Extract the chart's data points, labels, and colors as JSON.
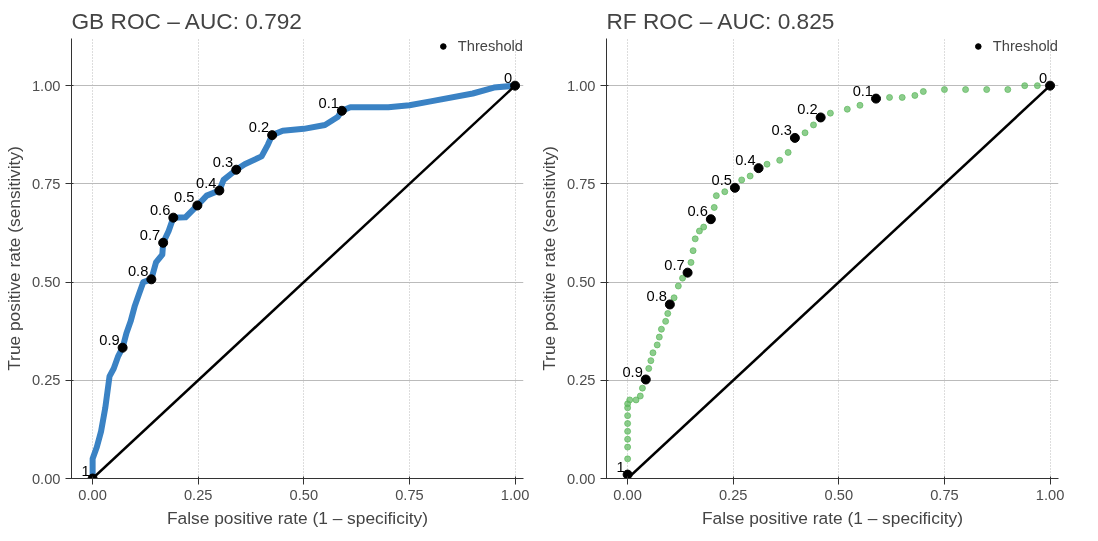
{
  "chart_data": [
    {
      "type": "line",
      "title": "GB ROC – AUC: 0.792",
      "xlabel": "False positive rate (1 – specificity)",
      "ylabel": "True positive rate (sensitivity)",
      "xlim": [
        -0.05,
        1.02
      ],
      "ylim": [
        0,
        1.12
      ],
      "xticks": [
        {
          "value": 0,
          "label": "0.00"
        },
        {
          "value": 0.25,
          "label": "0.25"
        },
        {
          "value": 0.5,
          "label": "0.50"
        },
        {
          "value": 0.75,
          "label": "0.75"
        },
        {
          "value": 1,
          "label": "1.00"
        }
      ],
      "yticks": [
        {
          "value": 0,
          "label": "0.00"
        },
        {
          "value": 0.25,
          "label": "0.25"
        },
        {
          "value": 0.5,
          "label": "0.50"
        },
        {
          "value": 0.75,
          "label": "0.75"
        },
        {
          "value": 1,
          "label": "1.00"
        }
      ],
      "grid": true,
      "legend": "top right",
      "series": [
        {
          "color": "#3a82c4",
          "x": [
            0,
            0,
            0.01,
            0.02,
            0.03,
            0.04,
            0.05,
            0.06,
            0.071,
            0.08,
            0.09,
            0.1,
            0.11,
            0.12,
            0.139,
            0.15,
            0.165,
            0.167,
            0.18,
            0.191,
            0.22,
            0.248,
            0.27,
            0.3,
            0.31,
            0.34,
            0.36,
            0.4,
            0.415,
            0.425,
            0.45,
            0.5,
            0.55,
            0.58,
            0.59,
            0.61,
            0.7,
            0.75,
            0.8,
            0.9,
            0.95,
            1
          ],
          "values": [
            0,
            0.05,
            0.08,
            0.12,
            0.18,
            0.26,
            0.28,
            0.31,
            0.333,
            0.37,
            0.4,
            0.44,
            0.47,
            0.5,
            0.507,
            0.55,
            0.57,
            0.6,
            0.63,
            0.664,
            0.665,
            0.695,
            0.72,
            0.733,
            0.76,
            0.786,
            0.8,
            0.82,
            0.85,
            0.874,
            0.885,
            0.89,
            0.9,
            0.92,
            0.936,
            0.945,
            0.945,
            0.95,
            0.96,
            0.98,
            0.995,
            1
          ]
        },
        {
          "type": "line",
          "color": "#000000",
          "x": [
            0,
            1
          ],
          "values": [
            0,
            1
          ]
        },
        {
          "type": "scatter",
          "name": "Threshold",
          "color": "#000000",
          "marker": "circle",
          "x": [
            0,
            0.071,
            0.139,
            0.167,
            0.191,
            0.248,
            0.3,
            0.34,
            0.425,
            0.59,
            1
          ],
          "values": [
            0,
            0.333,
            0.507,
            0.6,
            0.664,
            0.695,
            0.733,
            0.786,
            0.874,
            0.936,
            1
          ]
        }
      ],
      "annotations": [
        {
          "text": "1",
          "x": 0,
          "y": 0
        },
        {
          "text": "0.9",
          "x": 0.071,
          "y": 0.333
        },
        {
          "text": "0.8",
          "x": 0.139,
          "y": 0.507
        },
        {
          "text": "0.7",
          "x": 0.167,
          "y": 0.6
        },
        {
          "text": "0.6",
          "x": 0.191,
          "y": 0.664
        },
        {
          "text": "0.5",
          "x": 0.248,
          "y": 0.695
        },
        {
          "text": "0.4",
          "x": 0.3,
          "y": 0.733
        },
        {
          "text": "0.3",
          "x": 0.34,
          "y": 0.786
        },
        {
          "text": "0.2",
          "x": 0.425,
          "y": 0.874
        },
        {
          "text": "0.1",
          "x": 0.59,
          "y": 0.936
        },
        {
          "text": "0",
          "x": 1,
          "y": 1
        }
      ]
    },
    {
      "type": "scatter",
      "title": "RF ROC – AUC: 0.825",
      "xlabel": "False positive rate (1 – specificity)",
      "ylabel": "True positive rate (sensitivity)",
      "xlim": [
        -0.05,
        1.02
      ],
      "ylim": [
        0,
        1.12
      ],
      "xticks": [
        {
          "value": 0,
          "label": "0.00"
        },
        {
          "value": 0.25,
          "label": "0.25"
        },
        {
          "value": 0.5,
          "label": "0.50"
        },
        {
          "value": 0.75,
          "label": "0.75"
        },
        {
          "value": 1,
          "label": "1.00"
        }
      ],
      "yticks": [
        {
          "value": 0,
          "label": "0.00"
        },
        {
          "value": 0.25,
          "label": "0.25"
        },
        {
          "value": 0.5,
          "label": "0.50"
        },
        {
          "value": 0.75,
          "label": "0.75"
        },
        {
          "value": 1,
          "label": "1.00"
        }
      ],
      "grid": true,
      "legend": "top right",
      "series": [
        {
          "color": "#5cb85c",
          "marker": "circle",
          "x": [
            0,
            0,
            0,
            0,
            0,
            0,
            0,
            0,
            0.005,
            0.02,
            0.03,
            0.035,
            0.05,
            0.055,
            0.06,
            0.07,
            0.075,
            0.08,
            0.09,
            0.095,
            0.11,
            0.12,
            0.13,
            0.15,
            0.155,
            0.16,
            0.17,
            0.18,
            0.205,
            0.21,
            0.23,
            0.27,
            0.29,
            0.33,
            0.36,
            0.38,
            0.42,
            0.44,
            0.48,
            0.52,
            0.55,
            0.62,
            0.65,
            0.68,
            0.7,
            0.75,
            0.8,
            0.85,
            0.9,
            0.94,
            0.97
          ],
          "values": [
            0.05,
            0.08,
            0.1,
            0.12,
            0.14,
            0.16,
            0.18,
            0.19,
            0.2,
            0.2,
            0.21,
            0.23,
            0.28,
            0.3,
            0.32,
            0.34,
            0.36,
            0.38,
            0.4,
            0.42,
            0.46,
            0.49,
            0.51,
            0.55,
            0.58,
            0.61,
            0.63,
            0.64,
            0.69,
            0.72,
            0.73,
            0.76,
            0.77,
            0.8,
            0.81,
            0.83,
            0.88,
            0.9,
            0.93,
            0.94,
            0.95,
            0.97,
            0.97,
            0.975,
            0.985,
            0.99,
            0.99,
            0.99,
            0.99,
            1,
            1
          ]
        },
        {
          "type": "line",
          "color": "#000000",
          "x": [
            0,
            1
          ],
          "values": [
            0,
            1
          ]
        },
        {
          "type": "scatter",
          "name": "Threshold",
          "color": "#000000",
          "marker": "circle",
          "x": [
            0,
            0.043,
            0.1,
            0.142,
            0.197,
            0.254,
            0.31,
            0.396,
            0.457,
            0.588,
            1
          ],
          "values": [
            0.01,
            0.252,
            0.443,
            0.524,
            0.66,
            0.74,
            0.79,
            0.867,
            0.919,
            0.967,
            1
          ]
        }
      ],
      "annotations": [
        {
          "text": "1",
          "x": 0,
          "y": 0.01
        },
        {
          "text": "0.9",
          "x": 0.043,
          "y": 0.252
        },
        {
          "text": "0.8",
          "x": 0.1,
          "y": 0.443
        },
        {
          "text": "0.7",
          "x": 0.142,
          "y": 0.524
        },
        {
          "text": "0.6",
          "x": 0.197,
          "y": 0.66
        },
        {
          "text": "0.5",
          "x": 0.254,
          "y": 0.74
        },
        {
          "text": "0.4",
          "x": 0.31,
          "y": 0.79
        },
        {
          "text": "0.3",
          "x": 0.396,
          "y": 0.867
        },
        {
          "text": "0.2",
          "x": 0.457,
          "y": 0.919
        },
        {
          "text": "0.1",
          "x": 0.588,
          "y": 0.967
        },
        {
          "text": "0",
          "x": 1,
          "y": 1
        }
      ]
    }
  ]
}
